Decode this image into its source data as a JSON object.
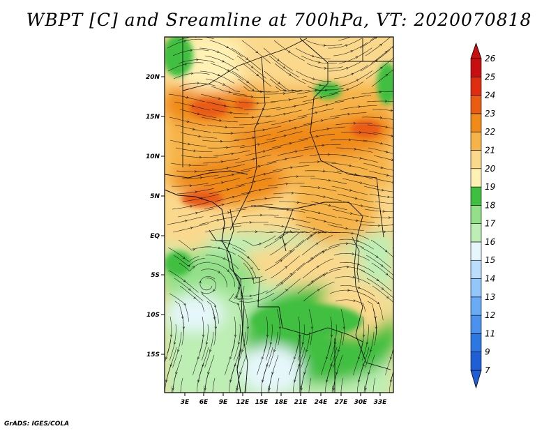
{
  "title": "WBPT [C] and Sreamline at 700hPa, VT: 2020070818",
  "credit": "GrADS: IGES/COLA",
  "map": {
    "lat_labels": [
      "20N",
      "15N",
      "10N",
      "5N",
      "EQ",
      "5S",
      "10S",
      "15S"
    ],
    "lon_labels": [
      "3E",
      "6E",
      "9E",
      "12E",
      "15E",
      "18E",
      "21E",
      "24E",
      "27E",
      "30E",
      "33E"
    ]
  },
  "colorbar": {
    "labels": [
      "7",
      "9",
      "11",
      "12",
      "13",
      "14",
      "15",
      "16",
      "17",
      "18",
      "19",
      "20",
      "21",
      "22",
      "23",
      "24",
      "25",
      "26"
    ],
    "colors": [
      "#1e5fd6",
      "#2c78e3",
      "#4b92ef",
      "#6aabf6",
      "#93c6fb",
      "#bcdefd",
      "#e6f7fb",
      "#bdeeb4",
      "#93e089",
      "#3fbf3f",
      "#fff2b4",
      "#fad98d",
      "#f6b347",
      "#f08a19",
      "#ea5c12",
      "#e02d10",
      "#c70f0f"
    ]
  }
}
